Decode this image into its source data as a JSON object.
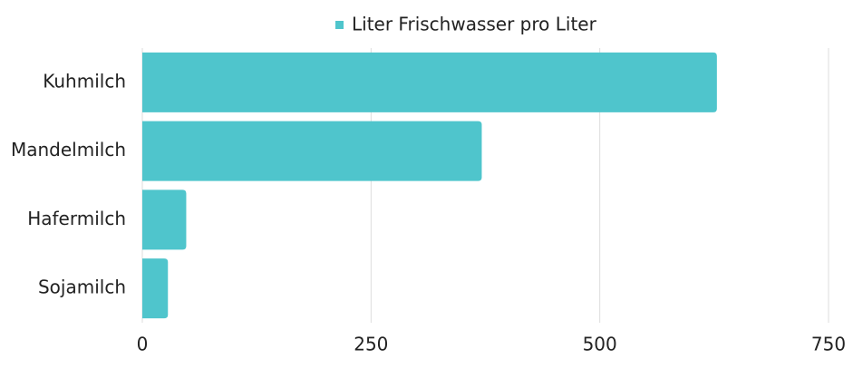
{
  "chart_data": {
    "type": "hbar",
    "categories": [
      "Kuhmilch",
      "Mandelmilch",
      "Hafermilch",
      "Sojamilch"
    ],
    "series": [
      {
        "name": "Liter Frischwasser pro Liter",
        "color": "#4fc5cc",
        "values": [
          628,
          371,
          48,
          28
        ]
      }
    ],
    "xlim": [
      0,
      750
    ],
    "xticks": [
      0,
      250,
      500,
      750
    ],
    "grid": true,
    "legend": "top"
  }
}
